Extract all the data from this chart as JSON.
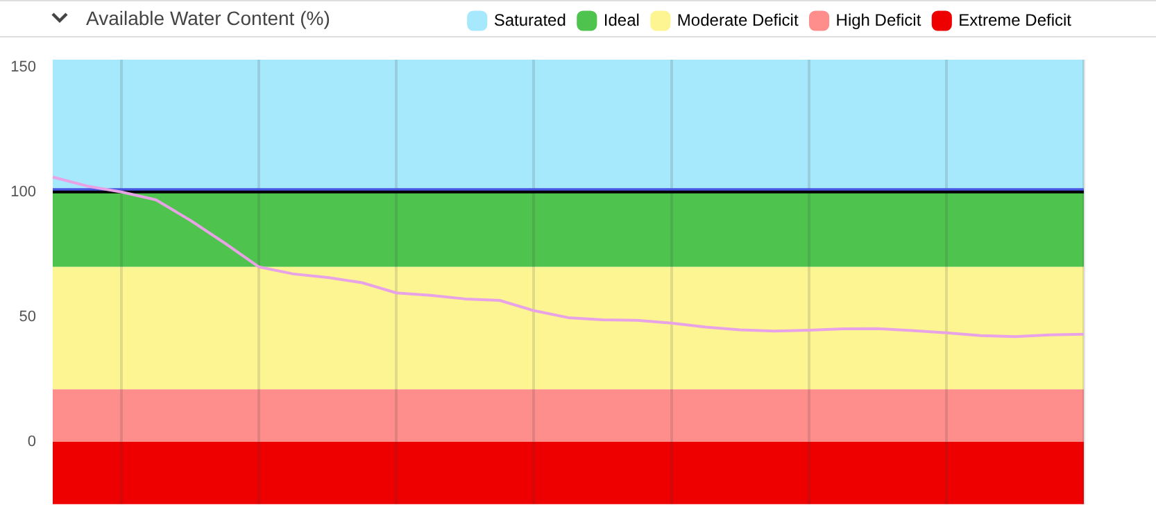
{
  "chart_data": {
    "type": "line",
    "title": "Available Water Content (%)",
    "categories": [
      null,
      null,
      null,
      null,
      null,
      null,
      null,
      null,
      null,
      null,
      null,
      null,
      null,
      null,
      null,
      null,
      null,
      null,
      null,
      null,
      null,
      null,
      null,
      null,
      null,
      null,
      null,
      null,
      null,
      null,
      null
    ],
    "series": [
      {
        "color": "#e8a2e6",
        "values": [
          106,
          102.4,
          100,
          96.9,
          88.7,
          79.6,
          70,
          67.2,
          65.8,
          63.7,
          59.6,
          58.6,
          57.2,
          56.6,
          52.5,
          49.7,
          48.8,
          48.6,
          47.5,
          45.9,
          44.8,
          44.3,
          44.7,
          45.2,
          45.3,
          44.5,
          43.6,
          42.5,
          42.1,
          42.8,
          43.1
        ]
      }
    ],
    "ylim": [
      -25,
      153
    ],
    "yticks": [
      0,
      50,
      100,
      150
    ],
    "tick_labels": "y",
    "grid": "x",
    "legend": "top right",
    "marker": "none",
    "line_style": "solid",
    "bands": [
      {
        "axis": "y",
        "from": 100,
        "to": 153,
        "label": "Saturated",
        "color": "#a6e8fc"
      },
      {
        "axis": "y",
        "from": 70,
        "to": 100,
        "label": "Ideal",
        "color": "#4ec34e"
      },
      {
        "axis": "y",
        "from": 21,
        "to": 70,
        "label": "Moderate Deficit",
        "color": "#fdf592"
      },
      {
        "axis": "y",
        "from": 0,
        "to": 21,
        "label": "High Deficit",
        "color": "#fd8e8c"
      },
      {
        "axis": "y",
        "from": -25,
        "to": 0,
        "label": "Extreme Deficit",
        "color": "#ee0000"
      }
    ],
    "ref_lines": [
      {
        "axis": "y",
        "value": 101,
        "color": "#4656e0"
      },
      {
        "axis": "y",
        "value": 100,
        "color": "#000000"
      }
    ]
  }
}
